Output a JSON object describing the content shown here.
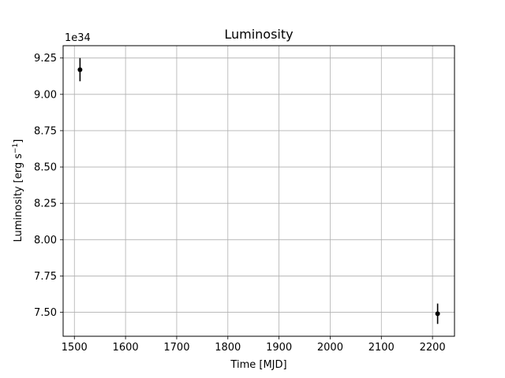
{
  "chart_data": {
    "type": "scatter",
    "title": "Luminosity",
    "xlabel": "Time [MJD]",
    "ylabel_main": "Luminosity [erg s",
    "ylabel_sup": "−1",
    "ylabel_end": "]",
    "offset_label": "1e34",
    "scale_exponent": 34,
    "xlim": [
      1478,
      2243
    ],
    "ylim": [
      7.335,
      9.335
    ],
    "xticks": [
      1500,
      1600,
      1700,
      1800,
      1900,
      2000,
      2100,
      2200
    ],
    "xtick_labels": [
      "1500",
      "1600",
      "1700",
      "1800",
      "1900",
      "2000",
      "2100",
      "2200"
    ],
    "yticks": [
      7.5,
      7.75,
      8.0,
      8.25,
      8.5,
      8.75,
      9.0,
      9.25
    ],
    "ytick_labels": [
      "7.50",
      "7.75",
      "8.00",
      "8.25",
      "8.50",
      "8.75",
      "9.00",
      "9.25"
    ],
    "grid": true,
    "marker_color": "#000000",
    "points": [
      {
        "x": 1511,
        "y": 9.17,
        "yerr": 0.08
      },
      {
        "x": 2210,
        "y": 7.49,
        "yerr": 0.07
      }
    ]
  }
}
